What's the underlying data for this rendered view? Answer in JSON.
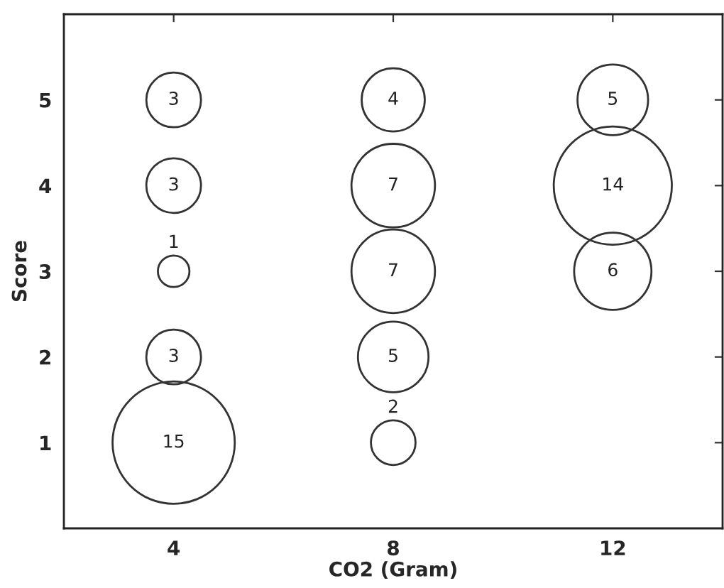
{
  "chart_data": {
    "type": "bubble",
    "xlabel": "CO2 (Gram)",
    "ylabel": "Score",
    "xlim": [
      2,
      14
    ],
    "xticks": [
      4,
      8,
      12
    ],
    "ylim": [
      0,
      6
    ],
    "yticks": [
      1,
      2,
      3,
      4,
      5
    ],
    "grid": false,
    "legend": false,
    "series": [
      {
        "color": "#333333",
        "x": [
          4,
          4,
          4,
          4,
          4,
          8,
          8,
          8,
          8,
          8,
          12,
          12,
          12
        ],
        "values": [
          5,
          4,
          3,
          2,
          1,
          5,
          4,
          3,
          2,
          1,
          5,
          4,
          3
        ],
        "sizes": [
          3,
          3,
          1,
          3,
          15,
          4,
          7,
          7,
          5,
          2,
          5,
          14,
          6
        ],
        "value_labels": [
          "3",
          "3",
          "1",
          "3",
          "15",
          "4",
          "7",
          "7",
          "5",
          "2",
          "5",
          "14",
          "6"
        ]
      }
    ]
  }
}
